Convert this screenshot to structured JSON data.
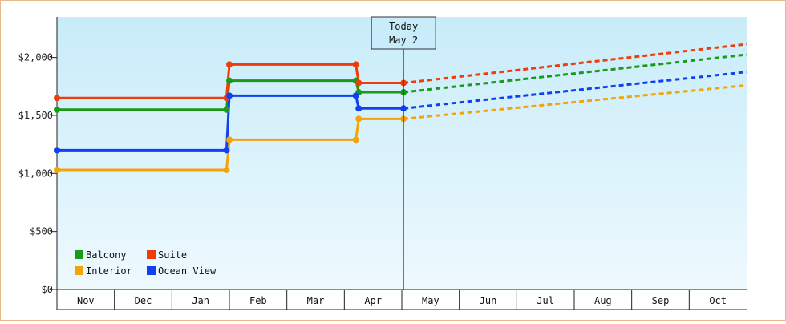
{
  "chart_data": {
    "type": "line",
    "title": "",
    "xlabel": "",
    "ylabel": "",
    "x": [
      "Nov",
      "Dec",
      "Jan",
      "Feb",
      "Mar",
      "Apr",
      "May",
      "Jun",
      "Jul",
      "Aug",
      "Sep",
      "Oct"
    ],
    "ylim": [
      0,
      2350
    ],
    "yticks": [
      0,
      500,
      1000,
      1500,
      2000
    ],
    "ytick_labels": [
      "$0",
      "$500",
      "$1,000",
      "$1,500",
      "$2,000"
    ],
    "today_marker": {
      "line1": "Today",
      "line2": "May 2",
      "x": 6.03
    },
    "legend": [
      {
        "name": "Balcony",
        "color": "#1a9a1a"
      },
      {
        "name": "Suite",
        "color": "#f03c0a"
      },
      {
        "name": "Interior",
        "color": "#f5a30a"
      },
      {
        "name": "Ocean View",
        "color": "#1040f0"
      }
    ],
    "series": [
      {
        "name": "Balcony",
        "color": "#1a9a1a",
        "actual": [
          [
            0,
            1550
          ],
          [
            2.95,
            1550
          ],
          [
            3.0,
            1800
          ],
          [
            5.2,
            1800
          ],
          [
            5.25,
            1700
          ],
          [
            6.03,
            1700
          ]
        ],
        "markers": [
          [
            0,
            1550
          ],
          [
            2.95,
            1550
          ],
          [
            3.0,
            1800
          ],
          [
            5.2,
            1800
          ],
          [
            5.25,
            1700
          ],
          [
            6.03,
            1700
          ]
        ],
        "projection": [
          [
            6.03,
            1700
          ],
          [
            12,
            2025
          ]
        ]
      },
      {
        "name": "Suite",
        "color": "#f03c0a",
        "actual": [
          [
            0,
            1650
          ],
          [
            2.95,
            1650
          ],
          [
            3.0,
            1940
          ],
          [
            5.2,
            1940
          ],
          [
            5.25,
            1780
          ],
          [
            6.03,
            1780
          ]
        ],
        "markers": [
          [
            0,
            1650
          ],
          [
            2.95,
            1650
          ],
          [
            3.0,
            1940
          ],
          [
            5.2,
            1940
          ],
          [
            5.25,
            1780
          ],
          [
            6.03,
            1780
          ]
        ],
        "projection": [
          [
            6.03,
            1780
          ],
          [
            12,
            2115
          ]
        ]
      },
      {
        "name": "Interior",
        "color": "#f5a30a",
        "actual": [
          [
            0,
            1030
          ],
          [
            2.95,
            1030
          ],
          [
            3.0,
            1290
          ],
          [
            5.2,
            1290
          ],
          [
            5.25,
            1470
          ],
          [
            6.03,
            1470
          ]
        ],
        "markers": [
          [
            0,
            1030
          ],
          [
            2.95,
            1030
          ],
          [
            3.0,
            1290
          ],
          [
            5.2,
            1290
          ],
          [
            5.25,
            1470
          ],
          [
            6.03,
            1470
          ]
        ],
        "projection": [
          [
            6.03,
            1470
          ],
          [
            12,
            1760
          ]
        ]
      },
      {
        "name": "Ocean View",
        "color": "#1040f0",
        "actual": [
          [
            0,
            1200
          ],
          [
            2.95,
            1200
          ],
          [
            3.0,
            1670
          ],
          [
            5.2,
            1670
          ],
          [
            5.25,
            1560
          ],
          [
            6.03,
            1560
          ]
        ],
        "markers": [
          [
            0,
            1200
          ],
          [
            2.95,
            1200
          ],
          [
            3.0,
            1670
          ],
          [
            5.2,
            1670
          ],
          [
            5.25,
            1560
          ],
          [
            6.03,
            1560
          ]
        ],
        "projection": [
          [
            6.03,
            1560
          ],
          [
            12,
            1875
          ]
        ]
      }
    ]
  }
}
